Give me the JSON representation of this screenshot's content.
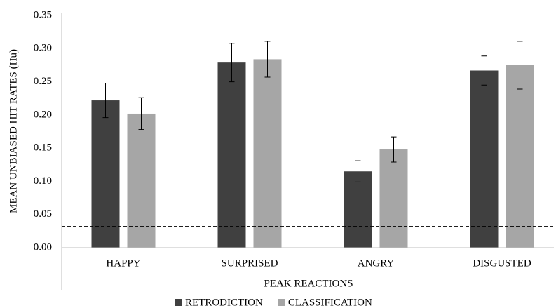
{
  "chart_data": {
    "type": "bar",
    "x_label": "PEAK REACTIONS",
    "y_label": "MEAN UNBIASED HIT RATES (Hu)",
    "categories": [
      "HAPPY",
      "SURPRISED",
      "ANGRY",
      "DISGUSTED"
    ],
    "series": [
      {
        "name": "RETRODICTION",
        "color": "#404040",
        "values": [
          0.222,
          0.279,
          0.115,
          0.267
        ],
        "errors": [
          0.026,
          0.029,
          0.016,
          0.022
        ]
      },
      {
        "name": "CLASSIFICATION",
        "color": "#a6a6a6",
        "values": [
          0.202,
          0.284,
          0.148,
          0.275
        ],
        "errors": [
          0.024,
          0.027,
          0.019,
          0.036
        ]
      }
    ],
    "reference_line": 0.032,
    "ylim": [
      0,
      0.35
    ],
    "yticks": [
      {
        "value": 0,
        "label": "0.00"
      },
      {
        "value": 0.05,
        "label": "0.05"
      },
      {
        "value": 0.1,
        "label": "0.10"
      },
      {
        "value": 0.15,
        "label": "0.15"
      },
      {
        "value": 0.2,
        "label": "0.20"
      },
      {
        "value": 0.25,
        "label": "0.25"
      },
      {
        "value": 0.3,
        "label": "0.30"
      },
      {
        "value": 0.35,
        "label": "0.35"
      }
    ],
    "grid": false,
    "legend": "bottom"
  }
}
